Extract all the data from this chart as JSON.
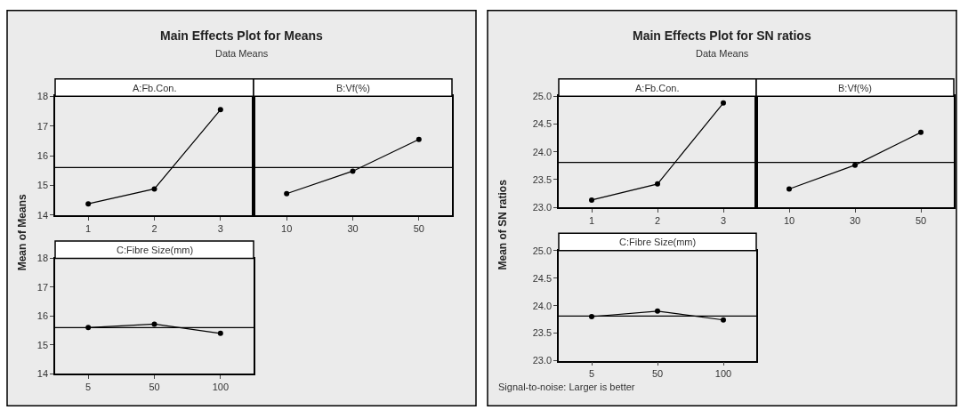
{
  "chart_data": [
    {
      "type": "line",
      "title": "Main Effects Plot for Means",
      "subtitle": "Data Means",
      "ylabel": "Mean of Means",
      "xlabel": "A:Fb.Con.",
      "categories": [
        "1",
        "2",
        "3"
      ],
      "values": [
        14.38,
        14.88,
        17.55
      ],
      "color": "#000000",
      "marker": "circle",
      "ylim": [
        14,
        18
      ],
      "yticks": [
        14,
        15,
        16,
        17,
        18
      ],
      "ref_lines": [
        {
          "axis": "y",
          "value": 15.6,
          "color": "#000000"
        }
      ]
    },
    {
      "type": "line",
      "xlabel": "B:Vf(%)",
      "categories": [
        "10",
        "30",
        "50"
      ],
      "values": [
        14.72,
        15.48,
        16.55
      ],
      "color": "#000000",
      "marker": "circle",
      "ylim": [
        14,
        18
      ],
      "yticks": [
        14,
        15,
        16,
        17,
        18
      ],
      "tick_labels": "x",
      "ref_lines": [
        {
          "axis": "y",
          "value": 15.6,
          "color": "#000000"
        }
      ]
    },
    {
      "type": "line",
      "xlabel": "C:Fibre Size(mm)",
      "categories": [
        "5",
        "50",
        "100"
      ],
      "values": [
        15.6,
        15.72,
        15.4
      ],
      "color": "#000000",
      "marker": "circle",
      "ylim": [
        14,
        18
      ],
      "yticks": [
        14,
        15,
        16,
        17,
        18
      ],
      "ref_lines": [
        {
          "axis": "y",
          "value": 15.6,
          "color": "#000000"
        }
      ]
    },
    {
      "type": "line",
      "title": "Main Effects Plot for SN ratios",
      "subtitle": "Data Means",
      "ylabel": "Mean of SN ratios",
      "xlabel": "A:Fb.Con.",
      "categories": [
        "1",
        "2",
        "3"
      ],
      "values": [
        23.13,
        23.42,
        24.88
      ],
      "color": "#000000",
      "marker": "circle",
      "ylim": [
        23,
        25
      ],
      "yticks": [
        {
          "value": 23,
          "label": "23.0"
        },
        {
          "value": 23.5,
          "label": "23.5"
        },
        {
          "value": 24,
          "label": "24.0"
        },
        {
          "value": 24.5,
          "label": "24.5"
        },
        {
          "value": 25,
          "label": "25.0"
        }
      ],
      "ref_lines": [
        {
          "axis": "y",
          "value": 23.81,
          "color": "#000000"
        }
      ]
    },
    {
      "type": "line",
      "xlabel": "B:Vf(%)",
      "categories": [
        "10",
        "30",
        "50"
      ],
      "values": [
        23.33,
        23.76,
        24.35
      ],
      "color": "#000000",
      "marker": "circle",
      "ylim": [
        23,
        25
      ],
      "yticks": [
        23,
        23.5,
        24,
        24.5,
        25
      ],
      "tick_labels": "x",
      "ref_lines": [
        {
          "axis": "y",
          "value": 23.81,
          "color": "#000000"
        }
      ]
    },
    {
      "type": "line",
      "xlabel": "C:Fibre Size(mm)",
      "categories": [
        "5",
        "50",
        "100"
      ],
      "values": [
        23.8,
        23.9,
        23.74
      ],
      "color": "#000000",
      "marker": "circle",
      "ylim": [
        23,
        25
      ],
      "yticks": [
        {
          "value": 23,
          "label": "23.0"
        },
        {
          "value": 23.5,
          "label": "23.5"
        },
        {
          "value": 24,
          "label": "24.0"
        },
        {
          "value": 24.5,
          "label": "24.5"
        },
        {
          "value": 25,
          "label": "25.0"
        }
      ],
      "ref_lines": [
        {
          "axis": "y",
          "value": 23.81,
          "color": "#000000"
        }
      ],
      "annotations": [
        "Signal-to-noise: Larger is better"
      ]
    }
  ]
}
